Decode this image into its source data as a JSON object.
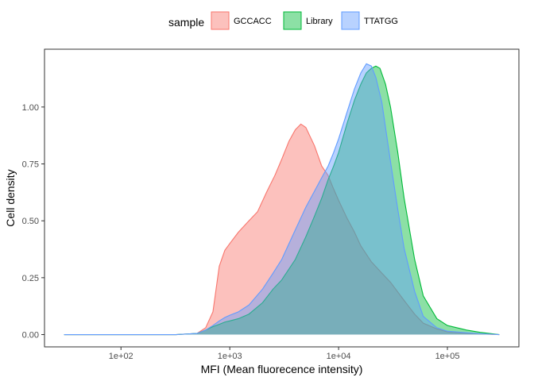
{
  "chart_data": {
    "type": "area",
    "xlabel": "MFI (Mean fluorecence intensity)",
    "ylabel": "Cell density",
    "x_scale": "log10",
    "xlim": [
      30,
      300000
    ],
    "ylim": [
      0,
      1.2
    ],
    "x_ticks": [
      100,
      1000,
      10000,
      100000
    ],
    "x_tick_labels": [
      "1e+02",
      "1e+03",
      "1e+04",
      "1e+05"
    ],
    "y_ticks": [
      0,
      0.25,
      0.5,
      0.75,
      1.0
    ],
    "y_tick_labels": [
      "0.00",
      "0.25",
      "0.50",
      "0.75",
      "1.00"
    ],
    "grid": false,
    "legend": {
      "title": "sample",
      "position": "top"
    },
    "series": [
      {
        "name": "GCCACC",
        "fill": "#F8766D",
        "stroke": "#F8766D",
        "x": [
          30,
          320,
          500,
          600,
          700,
          800,
          900,
          1000,
          1200,
          1500,
          1800,
          2200,
          2600,
          3000,
          3500,
          4000,
          4500,
          5000,
          6000,
          7000,
          8000,
          9000,
          10000,
          12000,
          14000,
          16000,
          20000,
          25000,
          30000,
          40000,
          50000,
          60000,
          80000,
          100000,
          150000,
          200000,
          300000
        ],
        "values": [
          0.0,
          0.0,
          0.005,
          0.03,
          0.1,
          0.3,
          0.37,
          0.4,
          0.45,
          0.5,
          0.54,
          0.63,
          0.7,
          0.77,
          0.85,
          0.9,
          0.925,
          0.91,
          0.83,
          0.74,
          0.7,
          0.64,
          0.59,
          0.51,
          0.45,
          0.39,
          0.32,
          0.27,
          0.23,
          0.15,
          0.09,
          0.05,
          0.025,
          0.012,
          0.005,
          0.003,
          0.0
        ]
      },
      {
        "name": "Library",
        "fill": "#00BA38",
        "stroke": "#00BA38",
        "x": [
          30,
          320,
          500,
          600,
          700,
          800,
          900,
          1000,
          1200,
          1500,
          2000,
          2500,
          3000,
          4000,
          5000,
          6000,
          7000,
          8000,
          9000,
          10000,
          12000,
          14000,
          16000,
          18000,
          20000,
          22000,
          24000,
          27000,
          30000,
          35000,
          40000,
          50000,
          60000,
          80000,
          100000,
          150000,
          200000,
          300000
        ],
        "values": [
          0.0,
          0.0,
          0.005,
          0.02,
          0.035,
          0.045,
          0.055,
          0.06,
          0.07,
          0.09,
          0.14,
          0.2,
          0.24,
          0.33,
          0.43,
          0.52,
          0.6,
          0.68,
          0.74,
          0.8,
          0.93,
          1.03,
          1.1,
          1.15,
          1.17,
          1.18,
          1.17,
          1.1,
          1.0,
          0.8,
          0.6,
          0.33,
          0.17,
          0.07,
          0.04,
          0.02,
          0.01,
          0.0
        ]
      },
      {
        "name": "TTATGG",
        "fill": "#619CFF",
        "stroke": "#619CFF",
        "x": [
          30,
          320,
          500,
          600,
          700,
          800,
          900,
          1000,
          1200,
          1500,
          2000,
          2500,
          3000,
          4000,
          5000,
          6000,
          7000,
          8000,
          9000,
          10000,
          12000,
          14000,
          16000,
          18000,
          20000,
          22000,
          25000,
          30000,
          35000,
          40000,
          50000,
          60000,
          80000,
          100000,
          150000,
          200000,
          300000
        ],
        "values": [
          0.0,
          0.0,
          0.005,
          0.02,
          0.04,
          0.06,
          0.075,
          0.085,
          0.1,
          0.13,
          0.2,
          0.27,
          0.33,
          0.46,
          0.56,
          0.63,
          0.69,
          0.74,
          0.8,
          0.86,
          0.98,
          1.08,
          1.15,
          1.19,
          1.18,
          1.13,
          1.02,
          0.76,
          0.55,
          0.38,
          0.19,
          0.08,
          0.03,
          0.015,
          0.008,
          0.004,
          0.0
        ]
      }
    ]
  }
}
